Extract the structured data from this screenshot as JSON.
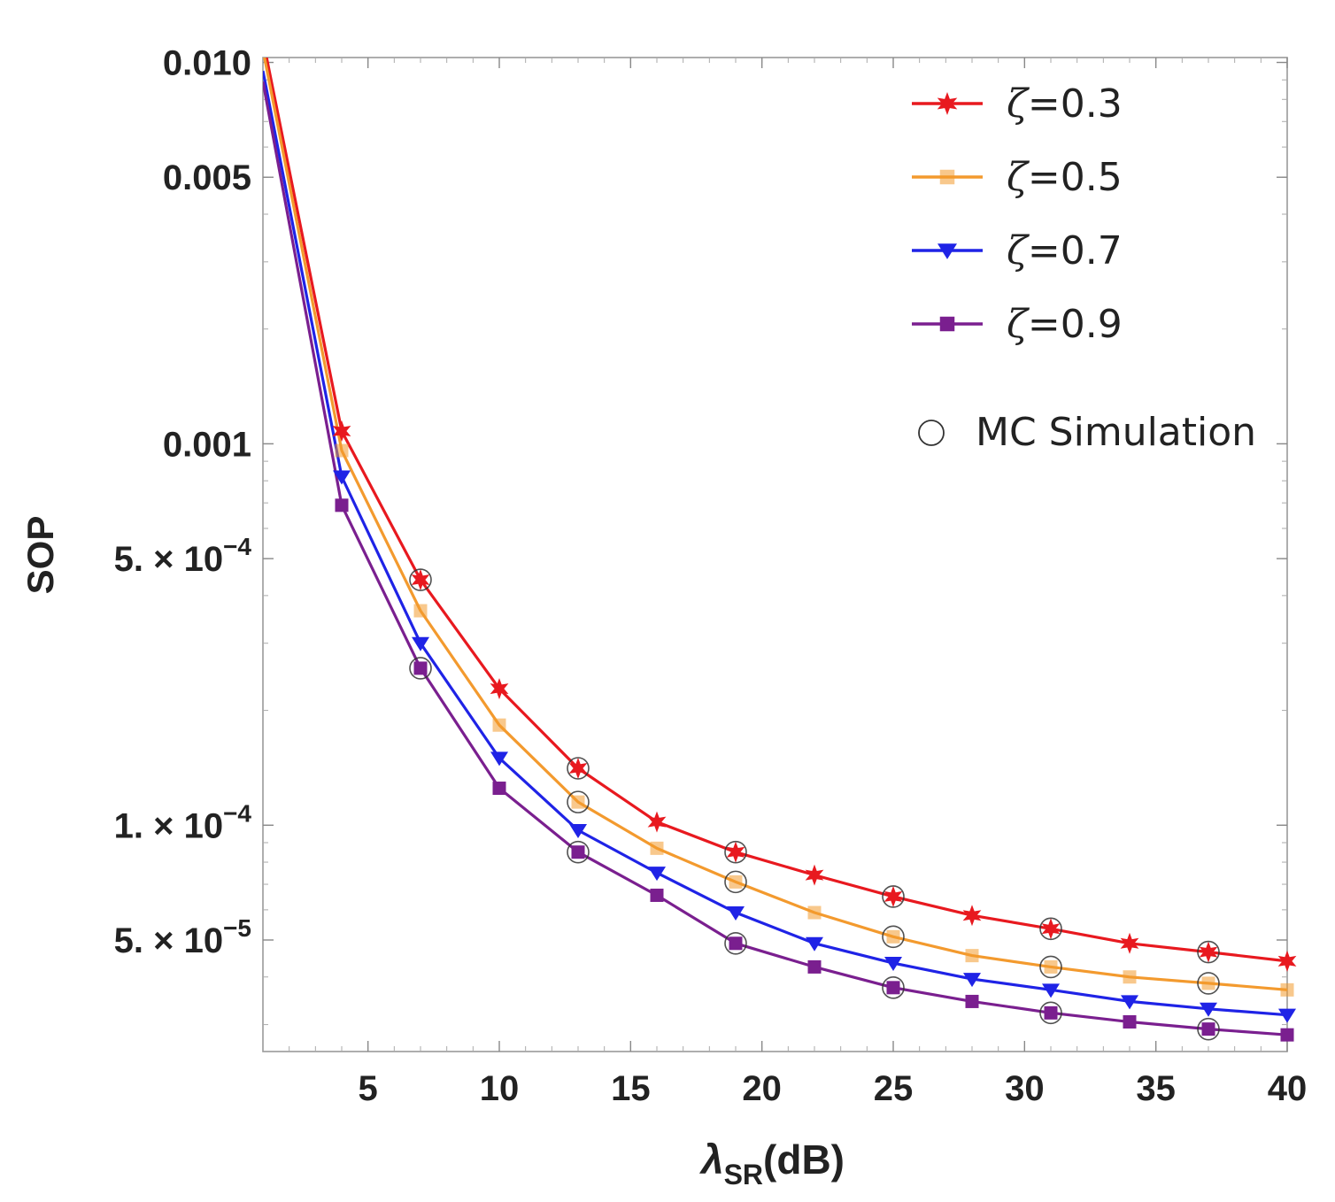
{
  "chart_data": {
    "type": "line",
    "title": "",
    "xlabel": {
      "main": "λ",
      "sub": "SR",
      "tail": "(dB)"
    },
    "ylabel": "SOP",
    "yscale": "log",
    "xlim": [
      1,
      40
    ],
    "ylim": [
      2.55e-05,
      0.0103
    ],
    "x_ticks": [
      5,
      10,
      15,
      20,
      25,
      30,
      35,
      40
    ],
    "x_tick_labels": [
      "5",
      "10",
      "15",
      "20",
      "25",
      "30",
      "35",
      "40"
    ],
    "y_ticks": [
      {
        "value": 0.01,
        "mantissa": "0.010",
        "exponent": ""
      },
      {
        "value": 0.005,
        "mantissa": "0.005",
        "exponent": ""
      },
      {
        "value": 0.001,
        "mantissa": "0.001",
        "exponent": ""
      },
      {
        "value": 0.0005,
        "mantissa": "5. × 10",
        "exponent": "−4"
      },
      {
        "value": 0.0001,
        "mantissa": "1. × 10",
        "exponent": "−4"
      },
      {
        "value": 5e-05,
        "mantissa": "5. × 10",
        "exponent": "−5"
      }
    ],
    "x": [
      1,
      4,
      7,
      10,
      13,
      16,
      19,
      22,
      25,
      28,
      31,
      34,
      37,
      40
    ],
    "series": [
      {
        "name": "ζ=0.3",
        "color": "#e8191f",
        "marker": "star",
        "values": [
          0.0115,
          0.00108,
          0.00044,
          0.000228,
          0.000141,
          0.000102,
          8.5e-05,
          7.4e-05,
          6.5e-05,
          5.8e-05,
          5.35e-05,
          4.9e-05,
          4.65e-05,
          4.4e-05
        ]
      },
      {
        "name": "ζ=0.5",
        "color": "#f39a2e",
        "marker": "square",
        "values": [
          0.0108,
          0.00096,
          0.000365,
          0.000183,
          0.000115,
          8.7e-05,
          7.1e-05,
          5.9e-05,
          5.1e-05,
          4.55e-05,
          4.25e-05,
          4e-05,
          3.85e-05,
          3.7e-05
        ]
      },
      {
        "name": "ζ=0.7",
        "color": "#1f23e6",
        "marker": "triangle-down",
        "values": [
          0.0095,
          0.00082,
          0.0003,
          0.00015,
          9.7e-05,
          7.5e-05,
          5.9e-05,
          4.9e-05,
          4.35e-05,
          3.95e-05,
          3.7e-05,
          3.45e-05,
          3.3e-05,
          3.18e-05
        ]
      },
      {
        "name": "ζ=0.9",
        "color": "#7a1f8f",
        "marker": "square",
        "values": [
          0.0089,
          0.00069,
          0.000258,
          0.000125,
          8.5e-05,
          6.55e-05,
          4.9e-05,
          4.25e-05,
          3.75e-05,
          3.45e-05,
          3.22e-05,
          3.05e-05,
          2.92e-05,
          2.82e-05
        ]
      }
    ],
    "mc_simulation": {
      "label": "MC Simulation",
      "marker": "open-circle",
      "x": [
        7,
        13,
        19,
        25,
        31,
        37,
        13,
        19,
        25,
        31,
        37,
        7,
        13,
        19,
        25,
        31,
        37
      ],
      "values": [
        0.00044,
        0.000141,
        8.5e-05,
        6.5e-05,
        5.35e-05,
        4.65e-05,
        0.000115,
        7.1e-05,
        5.1e-05,
        4.25e-05,
        3.85e-05,
        0.000258,
        8.5e-05,
        4.9e-05,
        3.75e-05,
        3.22e-05,
        2.92e-05
      ]
    },
    "legend_position": "top-right",
    "grid": false
  }
}
